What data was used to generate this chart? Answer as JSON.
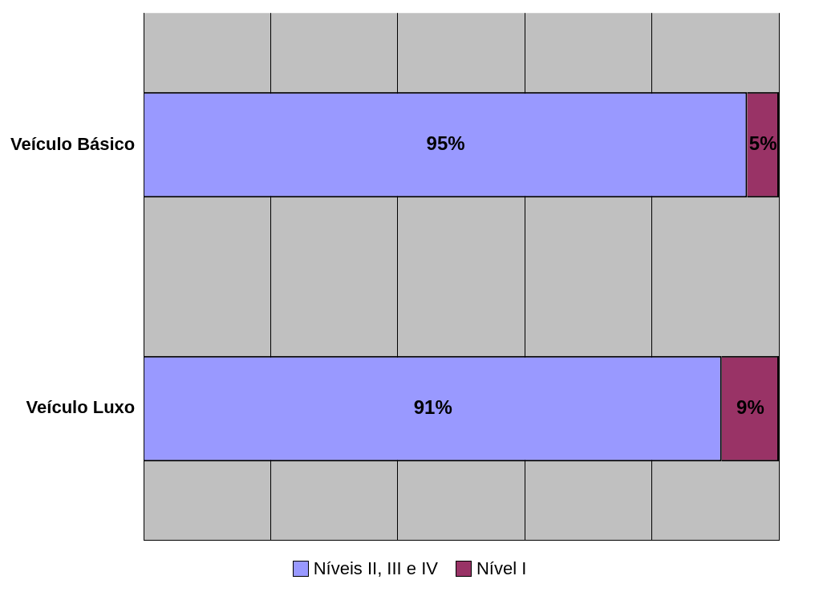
{
  "chart_data": {
    "type": "bar",
    "orientation": "horizontal",
    "stacked": true,
    "categories": [
      "Veículo Básico",
      "Veículo Luxo"
    ],
    "series": [
      {
        "name": "Níveis II, III e IV",
        "color": "#9999ff",
        "values": [
          95,
          91
        ],
        "value_labels": [
          "95%",
          "91%"
        ]
      },
      {
        "name": "Nível I",
        "color": "#993366",
        "values": [
          5,
          9
        ],
        "value_labels": [
          "5%",
          "9%"
        ]
      }
    ],
    "xlim": [
      0,
      100
    ],
    "xticks": [
      {
        "value": 0,
        "label": null
      },
      {
        "value": 20,
        "label": null
      },
      {
        "value": 40,
        "label": null
      },
      {
        "value": 60,
        "label": null
      },
      {
        "value": 80,
        "label": null
      },
      {
        "value": 100,
        "label": null
      }
    ],
    "grid": "x",
    "tick_labels": "y",
    "legend": "bottom"
  }
}
